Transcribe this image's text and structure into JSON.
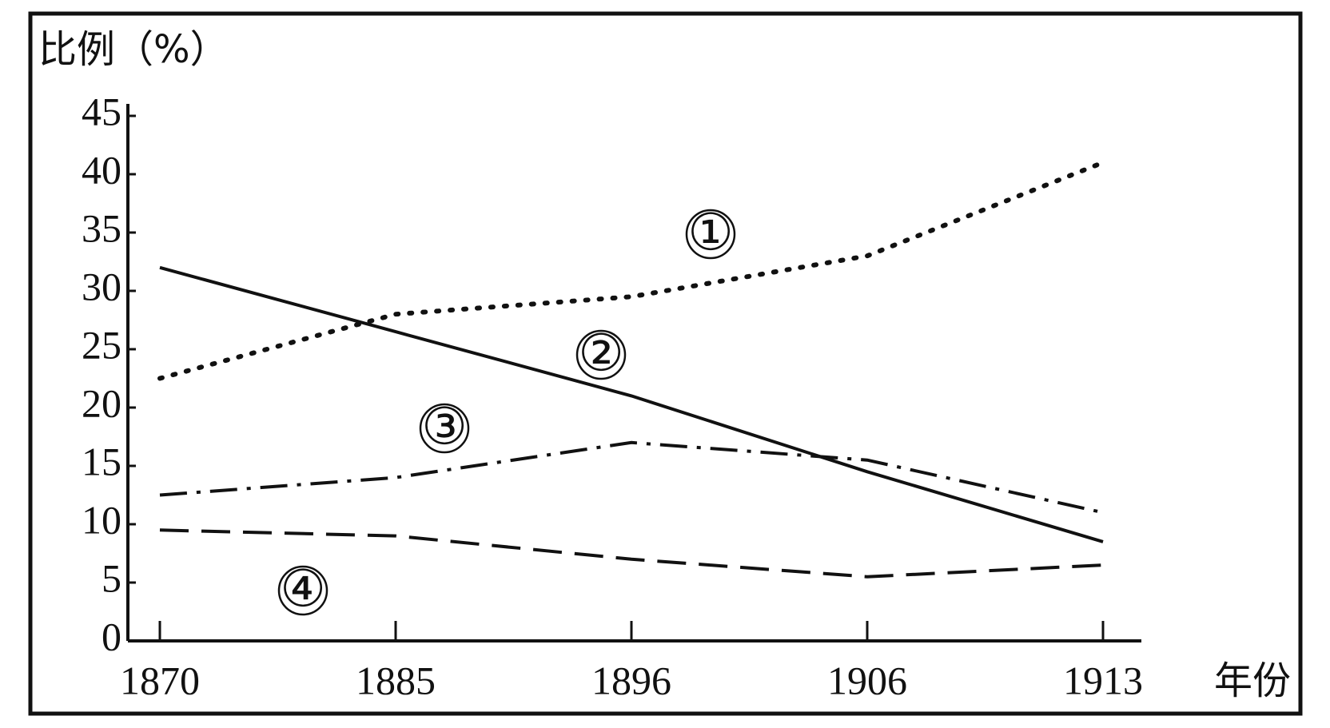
{
  "chart_data": {
    "type": "line",
    "y_label": "比例（%）",
    "x_label": "年份",
    "categories": [
      "1870",
      "1885",
      "1896",
      "1906",
      "1913"
    ],
    "series": [
      {
        "name": "①",
        "color": "#111111",
        "style": "dotted",
        "values": [
          22.5,
          28,
          29.5,
          33,
          41
        ]
      },
      {
        "name": "②",
        "color": "#111111",
        "style": "solid",
        "values": [
          32,
          26.5,
          21,
          14.5,
          8.5
        ]
      },
      {
        "name": "③",
        "color": "#111111",
        "style": "dash-dot",
        "values": [
          12.5,
          14,
          17,
          15.5,
          11
        ]
      },
      {
        "name": "④",
        "color": "#111111",
        "style": "dashed",
        "values": [
          9.5,
          9,
          7,
          5.5,
          6.5
        ]
      }
    ],
    "ylim": [
      0,
      45
    ],
    "yticks": [
      0,
      5,
      10,
      15,
      20,
      25,
      30,
      35,
      40,
      45
    ],
    "grid": false
  }
}
